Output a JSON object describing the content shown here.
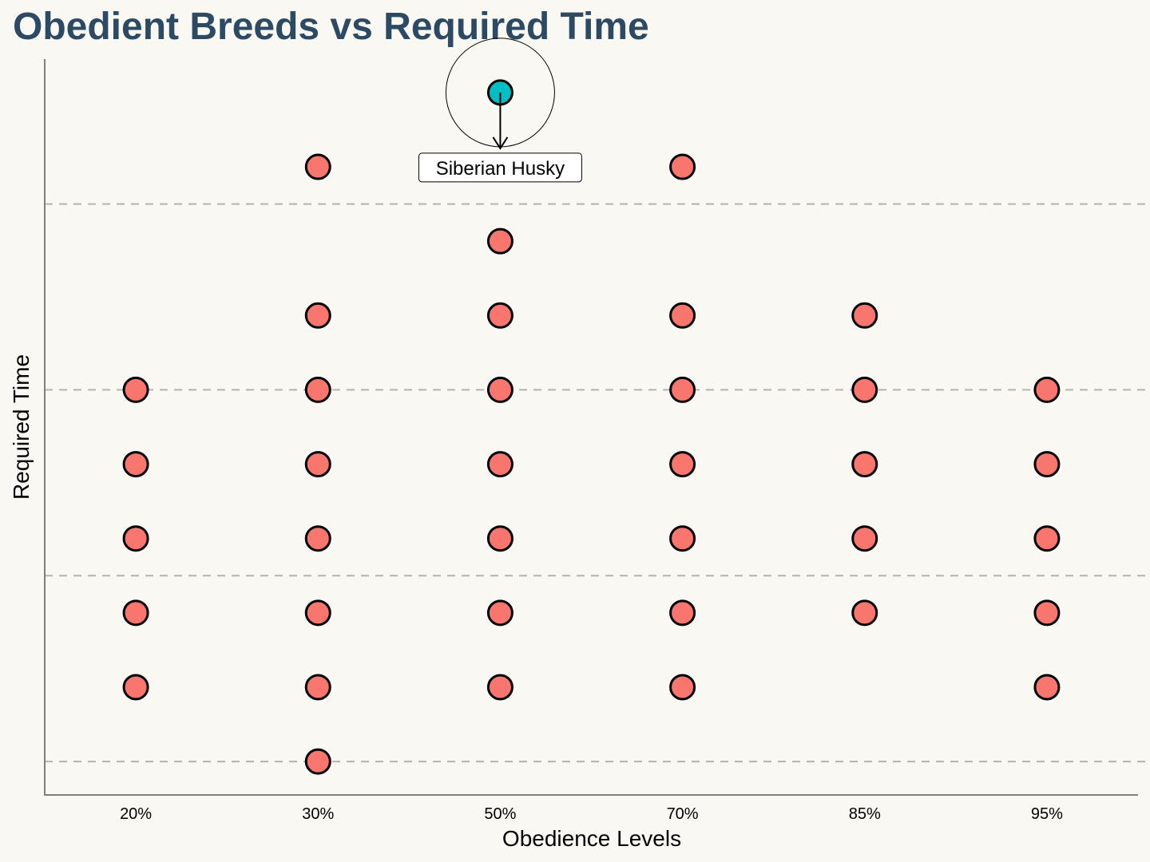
{
  "chart_data": {
    "type": "scatter",
    "title": "Obedient Breeds vs Required Time",
    "xlabel": "Obedience Levels",
    "ylabel": "Required Time",
    "categories": [
      "20%",
      "30%",
      "50%",
      "70%",
      "85%",
      "95%"
    ],
    "y_tick_labels_shown": false,
    "grid": "horizontal-dashed",
    "ylim": [
      0.55,
      10.45
    ],
    "gridline_levels": [
      1,
      3.5,
      6,
      8.5
    ],
    "points": [
      {
        "x": "20%",
        "y": 2
      },
      {
        "x": "20%",
        "y": 3
      },
      {
        "x": "20%",
        "y": 4
      },
      {
        "x": "20%",
        "y": 5
      },
      {
        "x": "20%",
        "y": 6
      },
      {
        "x": "30%",
        "y": 1
      },
      {
        "x": "30%",
        "y": 2
      },
      {
        "x": "30%",
        "y": 3
      },
      {
        "x": "30%",
        "y": 4
      },
      {
        "x": "30%",
        "y": 5
      },
      {
        "x": "30%",
        "y": 6
      },
      {
        "x": "30%",
        "y": 7
      },
      {
        "x": "30%",
        "y": 9
      },
      {
        "x": "50%",
        "y": 2
      },
      {
        "x": "50%",
        "y": 3
      },
      {
        "x": "50%",
        "y": 4
      },
      {
        "x": "50%",
        "y": 5
      },
      {
        "x": "50%",
        "y": 6
      },
      {
        "x": "50%",
        "y": 7
      },
      {
        "x": "50%",
        "y": 8
      },
      {
        "x": "50%",
        "y": 10,
        "highlight": true,
        "label": "Siberian Husky"
      },
      {
        "x": "70%",
        "y": 2
      },
      {
        "x": "70%",
        "y": 3
      },
      {
        "x": "70%",
        "y": 4
      },
      {
        "x": "70%",
        "y": 5
      },
      {
        "x": "70%",
        "y": 6
      },
      {
        "x": "70%",
        "y": 7
      },
      {
        "x": "70%",
        "y": 9
      },
      {
        "x": "85%",
        "y": 3
      },
      {
        "x": "85%",
        "y": 4
      },
      {
        "x": "85%",
        "y": 5
      },
      {
        "x": "85%",
        "y": 6
      },
      {
        "x": "85%",
        "y": 7
      },
      {
        "x": "95%",
        "y": 2
      },
      {
        "x": "95%",
        "y": 3
      },
      {
        "x": "95%",
        "y": 4
      },
      {
        "x": "95%",
        "y": 5
      },
      {
        "x": "95%",
        "y": 6
      }
    ],
    "colors": {
      "point": "#f8766d",
      "highlight": "#00bfc4",
      "title": "#2c4a63",
      "grid": "#b3b3b3",
      "axis": "#7f7f7f",
      "background": "#f9f8f3"
    }
  }
}
